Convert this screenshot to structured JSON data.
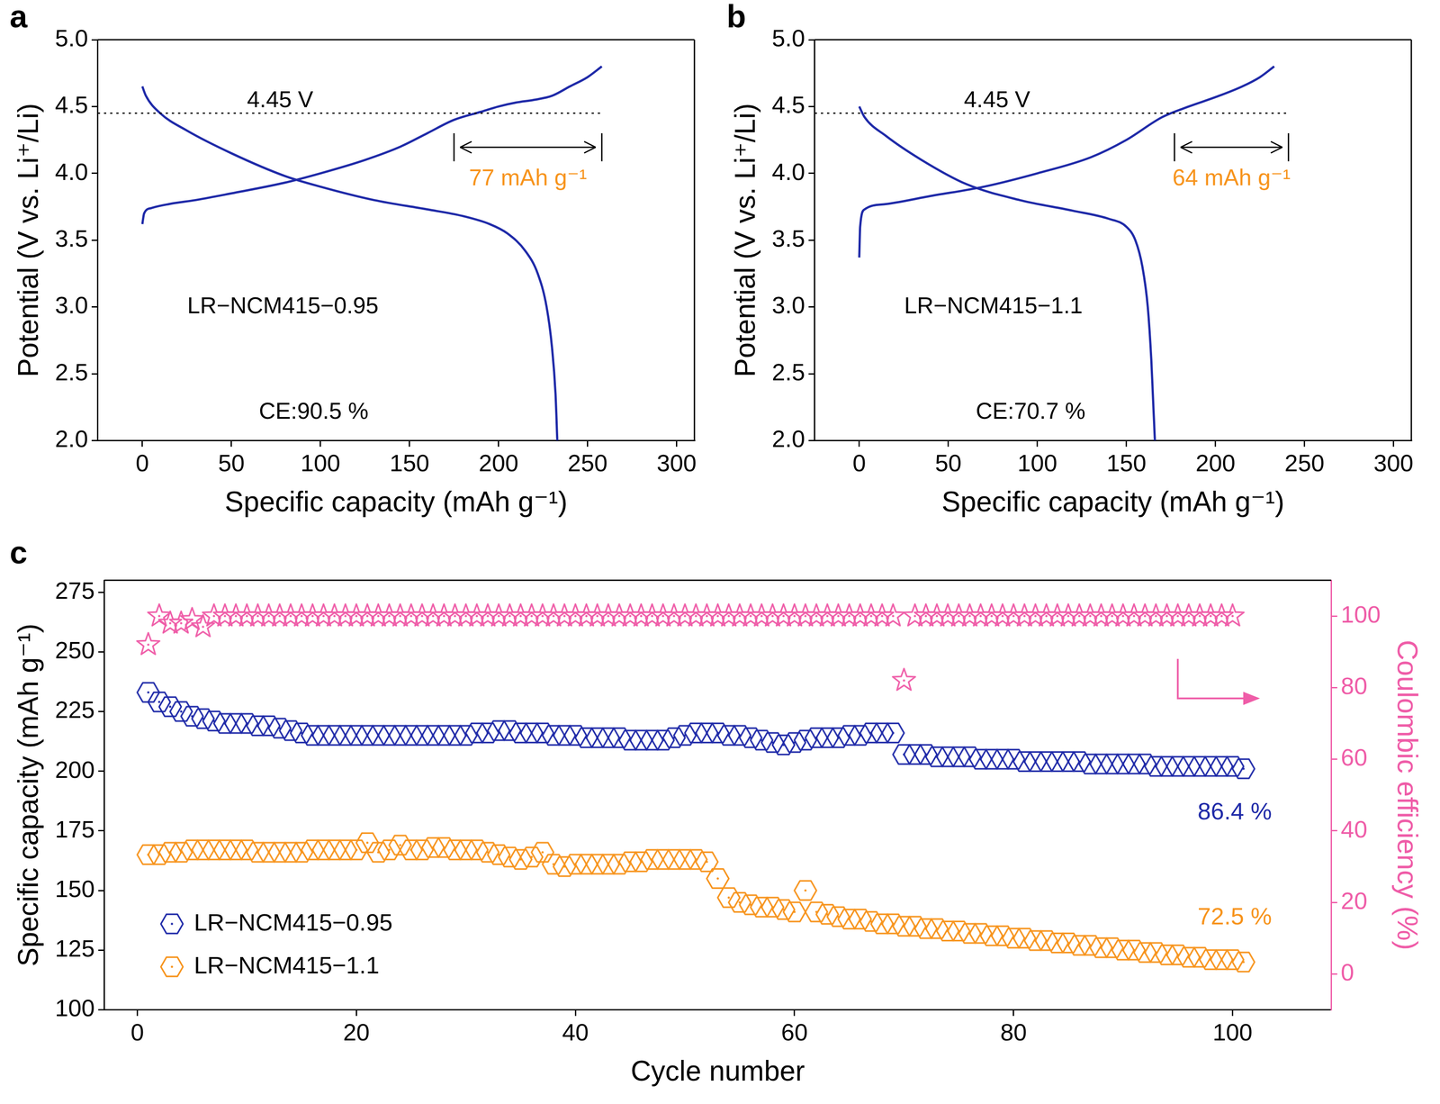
{
  "chart_data": [
    {
      "type": "line",
      "panel": "a",
      "xlabel": "Specific capacity (mAh g⁻¹)",
      "ylabel": "Potential (V vs. Li⁺/Li)",
      "xlim": [
        -25,
        310
      ],
      "xticks": [
        0,
        50,
        100,
        150,
        200,
        250,
        300
      ],
      "ylim": [
        2,
        5
      ],
      "yticks": [
        {
          "value": 2,
          "label": "2.0"
        },
        2.5,
        {
          "value": 3,
          "label": "3.0"
        },
        3.5,
        {
          "value": 4,
          "label": "4.0"
        },
        4.5,
        {
          "value": 5,
          "label": "5.0"
        }
      ],
      "grid": false,
      "series": [
        {
          "color": "#1f2aa8",
          "line_style": "solid",
          "x": [
            0,
            1,
            5,
            15,
            30,
            50,
            80,
            100,
            125,
            145,
            160,
            175,
            190,
            200,
            210,
            220,
            230,
            240,
            250,
            258
          ],
          "values": [
            3.62,
            3.7,
            3.74,
            3.77,
            3.8,
            3.85,
            3.93,
            4.0,
            4.1,
            4.2,
            4.3,
            4.4,
            4.46,
            4.5,
            4.53,
            4.55,
            4.58,
            4.65,
            4.72,
            4.8
          ]
        },
        {
          "color": "#1f2aa8",
          "line_style": "solid",
          "x": [
            0,
            2,
            10,
            25,
            50,
            80,
            100,
            130,
            160,
            180,
            195,
            205,
            215,
            222,
            227,
            230,
            232,
            233
          ],
          "values": [
            4.65,
            4.58,
            4.45,
            4.32,
            4.15,
            3.98,
            3.9,
            3.8,
            3.73,
            3.68,
            3.62,
            3.55,
            3.42,
            3.25,
            3.0,
            2.7,
            2.35,
            2.0
          ]
        }
      ],
      "annotations": [
        {
          "kind": "reference_line",
          "y": 4.45,
          "label": "4.45 V",
          "line_style": "dotted"
        },
        {
          "kind": "span",
          "x": [
            175,
            258
          ],
          "label": "77 mAh g⁻¹",
          "color": "#f7941d"
        },
        {
          "kind": "sample",
          "text": "LR−NCM415−0.95"
        },
        {
          "kind": "efficiency",
          "text": "CE:90.5 %"
        }
      ]
    },
    {
      "type": "line",
      "panel": "b",
      "xlabel": "Specific capacity (mAh g⁻¹)",
      "ylabel": "Potential (V vs. Li⁺/Li)",
      "xlim": [
        -25,
        310
      ],
      "xticks": [
        0,
        50,
        100,
        150,
        200,
        250,
        300
      ],
      "ylim": [
        2,
        5
      ],
      "yticks": [
        {
          "value": 2,
          "label": "2.0"
        },
        2.5,
        {
          "value": 3,
          "label": "3.0"
        },
        3.5,
        {
          "value": 4,
          "label": "4.0"
        },
        4.5,
        {
          "value": 5,
          "label": "5.0"
        }
      ],
      "grid": false,
      "series": [
        {
          "color": "#1f2aa8",
          "line_style": "solid",
          "x": [
            0,
            0.5,
            3,
            15,
            40,
            70,
            100,
            130,
            150,
            170,
            185,
            200,
            215,
            225,
            233
          ],
          "values": [
            3.37,
            3.6,
            3.73,
            3.77,
            3.83,
            3.9,
            4.0,
            4.12,
            4.25,
            4.42,
            4.5,
            4.57,
            4.65,
            4.72,
            4.8
          ]
        },
        {
          "color": "#1f2aa8",
          "line_style": "solid",
          "x": [
            0,
            3,
            15,
            35,
            60,
            90,
            120,
            140,
            150,
            155,
            159,
            162,
            164,
            165,
            166
          ],
          "values": [
            4.5,
            4.42,
            4.28,
            4.1,
            3.92,
            3.8,
            3.72,
            3.66,
            3.6,
            3.5,
            3.3,
            3.0,
            2.6,
            2.3,
            2.0
          ]
        }
      ],
      "annotations": [
        {
          "kind": "reference_line",
          "y": 4.45,
          "label": "4.45 V",
          "line_style": "dotted"
        },
        {
          "kind": "span",
          "x": [
            177,
            241
          ],
          "label": "64 mAh g⁻¹",
          "color": "#f7941d"
        },
        {
          "kind": "sample",
          "text": "LR−NCM415−1.1"
        },
        {
          "kind": "efficiency",
          "text": "CE:70.7 %"
        }
      ]
    },
    {
      "type": "scatter",
      "panel": "c",
      "xlabel": "Cycle number",
      "ylabel": "Specific capacity (mAh g⁻¹)",
      "y2label": "Coulombic efficiency (%)",
      "xlim": [
        -3,
        109
      ],
      "xticks": [
        0,
        20,
        40,
        60,
        80,
        100
      ],
      "ylim": [
        100,
        280
      ],
      "yticks": [
        100,
        125,
        150,
        175,
        200,
        225,
        250,
        275
      ],
      "y2lim": [
        -10,
        110
      ],
      "y2ticks": [
        0,
        20,
        40,
        60,
        80,
        100
      ],
      "grid": false,
      "legend": "lower left",
      "series": [
        {
          "name": "LR−NCM415−0.95",
          "color": "#1f2aa8",
          "marker": "hexagon",
          "end_label": "86.4 %",
          "x": [
            1,
            2,
            3,
            4,
            5,
            6,
            7,
            8,
            9,
            10,
            11,
            12,
            13,
            14,
            15,
            16,
            17,
            18,
            19,
            20,
            21,
            22,
            23,
            24,
            25,
            26,
            27,
            28,
            29,
            30,
            31,
            32,
            33,
            34,
            35,
            36,
            37,
            38,
            39,
            40,
            41,
            42,
            43,
            44,
            45,
            46,
            47,
            48,
            49,
            50,
            51,
            52,
            53,
            54,
            55,
            56,
            57,
            58,
            59,
            60,
            61,
            62,
            63,
            64,
            65,
            66,
            67,
            68,
            69,
            70,
            71,
            72,
            73,
            74,
            75,
            76,
            77,
            78,
            79,
            80,
            81,
            82,
            83,
            84,
            85,
            86,
            87,
            88,
            89,
            90,
            91,
            92,
            93,
            94,
            95,
            96,
            97,
            98,
            99,
            100,
            101
          ],
          "values": [
            233,
            229,
            227,
            225,
            223,
            222,
            221,
            220,
            220,
            220,
            219,
            219,
            218,
            217,
            216,
            215,
            215,
            215,
            215,
            215,
            215,
            215,
            215,
            215,
            215,
            215,
            215,
            215,
            215,
            215,
            216,
            216,
            217,
            217,
            216,
            216,
            216,
            215,
            215,
            215,
            214,
            214,
            214,
            214,
            213,
            213,
            213,
            213,
            214,
            215,
            216,
            216,
            216,
            215,
            215,
            214,
            213,
            212,
            211,
            212,
            213,
            214,
            214,
            214,
            215,
            215,
            216,
            216,
            216,
            207,
            207,
            207,
            206,
            206,
            206,
            206,
            205,
            205,
            205,
            205,
            204,
            204,
            204,
            204,
            204,
            204,
            203,
            203,
            203,
            203,
            203,
            203,
            202,
            202,
            202,
            202,
            202,
            202,
            202,
            202,
            201
          ]
        },
        {
          "name": "LR−NCM415−1.1",
          "color": "#f7941d",
          "marker": "hexagon",
          "end_label": "72.5 %",
          "x": [
            1,
            2,
            3,
            4,
            5,
            6,
            7,
            8,
            9,
            10,
            11,
            12,
            13,
            14,
            15,
            16,
            17,
            18,
            19,
            20,
            21,
            22,
            23,
            24,
            25,
            26,
            27,
            28,
            29,
            30,
            31,
            32,
            33,
            34,
            35,
            36,
            37,
            38,
            39,
            40,
            41,
            42,
            43,
            44,
            45,
            46,
            47,
            48,
            49,
            50,
            51,
            52,
            53,
            54,
            55,
            56,
            57,
            58,
            59,
            60,
            61,
            62,
            63,
            64,
            65,
            66,
            67,
            68,
            69,
            70,
            71,
            72,
            73,
            74,
            75,
            76,
            77,
            78,
            79,
            80,
            81,
            82,
            83,
            84,
            85,
            86,
            87,
            88,
            89,
            90,
            91,
            92,
            93,
            94,
            95,
            96,
            97,
            98,
            99,
            100,
            101
          ],
          "values": [
            165,
            165,
            166,
            166,
            167,
            167,
            167,
            167,
            167,
            167,
            166,
            166,
            166,
            166,
            166,
            167,
            167,
            167,
            167,
            167,
            170,
            166,
            167,
            169,
            167,
            167,
            168,
            168,
            167,
            167,
            167,
            166,
            165,
            164,
            163,
            164,
            166,
            161,
            160,
            161,
            161,
            161,
            161,
            161,
            162,
            162,
            163,
            163,
            163,
            163,
            163,
            162,
            155,
            147,
            145,
            144,
            143,
            143,
            142,
            141,
            150,
            141,
            140,
            139,
            138,
            138,
            137,
            136,
            136,
            135,
            135,
            134,
            134,
            133,
            133,
            132,
            132,
            131,
            131,
            130,
            130,
            129,
            129,
            128,
            128,
            127,
            127,
            126,
            126,
            125,
            125,
            124,
            124,
            123,
            123,
            122,
            122,
            121,
            121,
            121,
            120
          ]
        },
        {
          "color": "#ef5da8",
          "marker": "star",
          "axis": "y2",
          "x": [
            1,
            2,
            3,
            4,
            5,
            6,
            7,
            8,
            9,
            10,
            11,
            12,
            13,
            14,
            15,
            16,
            17,
            18,
            19,
            20,
            21,
            22,
            23,
            24,
            25,
            26,
            27,
            28,
            29,
            30,
            31,
            32,
            33,
            34,
            35,
            36,
            37,
            38,
            39,
            40,
            41,
            42,
            43,
            44,
            45,
            46,
            47,
            48,
            49,
            50,
            51,
            52,
            53,
            54,
            55,
            56,
            57,
            58,
            59,
            60,
            61,
            62,
            63,
            64,
            65,
            66,
            67,
            68,
            69,
            70,
            71,
            72,
            73,
            74,
            75,
            76,
            77,
            78,
            79,
            80,
            81,
            82,
            83,
            84,
            85,
            86,
            87,
            88,
            89,
            90,
            91,
            92,
            93,
            94,
            95,
            96,
            97,
            98,
            99,
            100
          ],
          "values": [
            92,
            100,
            98,
            98,
            99,
            97,
            100,
            100,
            100,
            100,
            100,
            100,
            100,
            100,
            100,
            100,
            100,
            100,
            100,
            100,
            100,
            100,
            100,
            100,
            100,
            100,
            100,
            100,
            100,
            100,
            100,
            100,
            100,
            100,
            100,
            100,
            100,
            100,
            100,
            100,
            100,
            100,
            100,
            100,
            100,
            100,
            100,
            100,
            100,
            100,
            100,
            100,
            100,
            100,
            100,
            100,
            100,
            100,
            100,
            100,
            100,
            100,
            100,
            100,
            100,
            100,
            100,
            100,
            100,
            82,
            100,
            100,
            100,
            100,
            100,
            100,
            100,
            100,
            100,
            100,
            100,
            100,
            100,
            100,
            100,
            100,
            100,
            100,
            100,
            100,
            100,
            100,
            100,
            100,
            100,
            100,
            100,
            100,
            100,
            100
          ]
        }
      ]
    }
  ]
}
